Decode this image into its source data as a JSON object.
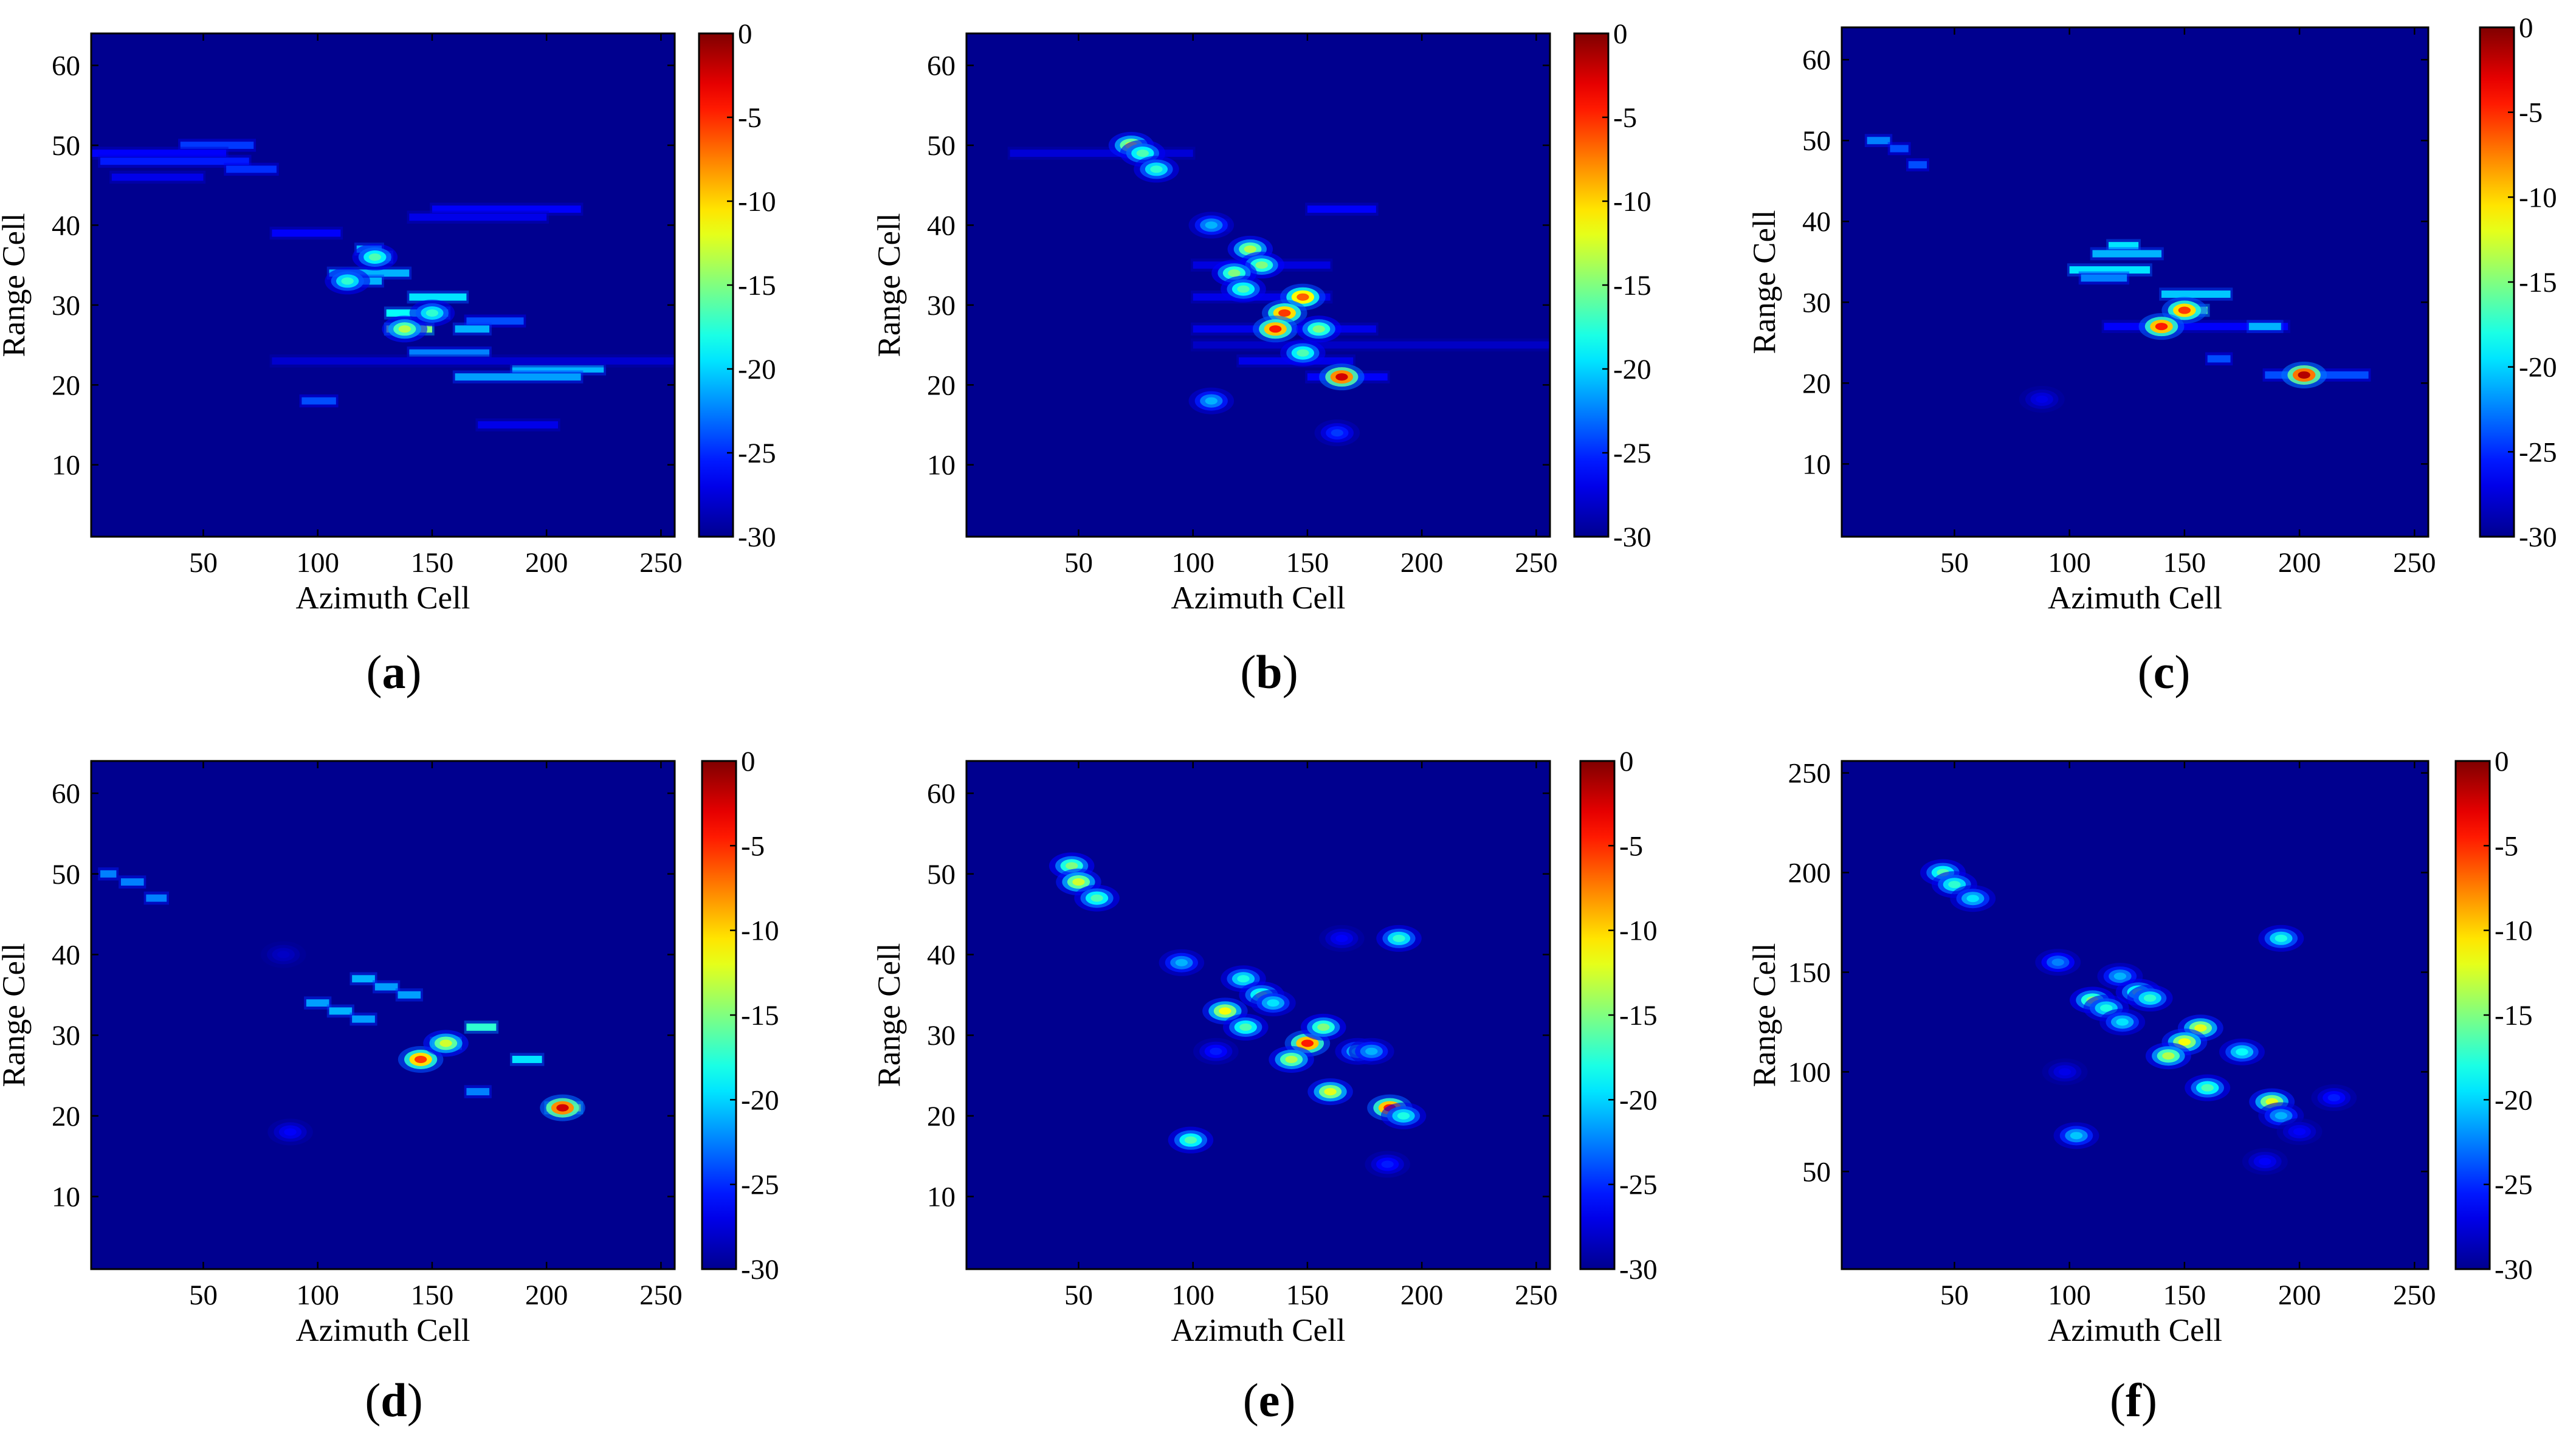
{
  "colormap": {
    "name": "jet",
    "background": "#00008f",
    "stops": [
      "#00008f",
      "#0000ff",
      "#00ffff",
      "#ffff00",
      "#ff0000",
      "#800000"
    ]
  },
  "chart_data": [
    {
      "id": "a",
      "type": "heatmap",
      "caption": "a",
      "xlabel": "Azimuth Cell",
      "ylabel": "Range Cell",
      "xlim": [
        1,
        256
      ],
      "ylim": [
        1,
        64
      ],
      "xticks": [
        50,
        100,
        150,
        200,
        250
      ],
      "yticks": [
        10,
        20,
        30,
        40,
        50,
        60
      ],
      "colorbar": {
        "min": -30,
        "max": 0,
        "ticks": [
          0,
          -5,
          -10,
          -15,
          -20,
          -25,
          -30
        ]
      },
      "streaks": [
        {
          "y": 50,
          "x1": 40,
          "x2": 72,
          "level": 0.18
        },
        {
          "y": 49,
          "x1": 1,
          "x2": 60,
          "level": 0.12
        },
        {
          "y": 48,
          "x1": 5,
          "x2": 70,
          "level": 0.15
        },
        {
          "y": 47,
          "x1": 60,
          "x2": 82,
          "level": 0.17
        },
        {
          "y": 46,
          "x1": 10,
          "x2": 50,
          "level": 0.1
        },
        {
          "y": 42,
          "x1": 150,
          "x2": 215,
          "level": 0.12
        },
        {
          "y": 41,
          "x1": 140,
          "x2": 200,
          "level": 0.1
        },
        {
          "y": 39,
          "x1": 80,
          "x2": 110,
          "level": 0.12
        },
        {
          "y": 37,
          "x1": 117,
          "x2": 128,
          "level": 0.3
        },
        {
          "y": 36,
          "x1": 120,
          "x2": 132,
          "level": 0.35
        },
        {
          "y": 34,
          "x1": 105,
          "x2": 140,
          "level": 0.3
        },
        {
          "y": 33,
          "x1": 110,
          "x2": 128,
          "level": 0.3
        },
        {
          "y": 31,
          "x1": 140,
          "x2": 165,
          "level": 0.35
        },
        {
          "y": 29,
          "x1": 130,
          "x2": 157,
          "level": 0.38
        },
        {
          "y": 28,
          "x1": 165,
          "x2": 190,
          "level": 0.2
        },
        {
          "y": 27,
          "x1": 130,
          "x2": 150,
          "level": 0.5
        },
        {
          "y": 27,
          "x1": 160,
          "x2": 175,
          "level": 0.3
        },
        {
          "y": 24,
          "x1": 140,
          "x2": 175,
          "level": 0.25
        },
        {
          "y": 22,
          "x1": 185,
          "x2": 225,
          "level": 0.3
        },
        {
          "y": 21,
          "x1": 160,
          "x2": 215,
          "level": 0.28
        },
        {
          "y": 18,
          "x1": 93,
          "x2": 108,
          "level": 0.2
        },
        {
          "y": 15,
          "x1": 170,
          "x2": 205,
          "level": 0.1
        },
        {
          "y": 23,
          "x1": 80,
          "x2": 256,
          "level": 0.07
        }
      ],
      "peaks": [
        {
          "x": 125,
          "y": 36,
          "level": 0.45
        },
        {
          "x": 113,
          "y": 33,
          "level": 0.42
        },
        {
          "x": 138,
          "y": 27,
          "level": 0.55
        },
        {
          "x": 150,
          "y": 29,
          "level": 0.42
        }
      ]
    },
    {
      "id": "b",
      "type": "heatmap",
      "caption": "b",
      "xlabel": "Azimuth Cell",
      "ylabel": "Range Cell",
      "xlim": [
        1,
        256
      ],
      "ylim": [
        1,
        64
      ],
      "xticks": [
        50,
        100,
        150,
        200,
        250
      ],
      "yticks": [
        10,
        20,
        30,
        40,
        50,
        60
      ],
      "colorbar": {
        "min": -30,
        "max": 0,
        "ticks": [
          0,
          -5,
          -10,
          -15,
          -20,
          -25,
          -30
        ]
      },
      "streaks": [
        {
          "y": 49,
          "x1": 20,
          "x2": 100,
          "level": 0.08
        },
        {
          "y": 42,
          "x1": 150,
          "x2": 180,
          "level": 0.12
        },
        {
          "y": 40,
          "x1": 105,
          "x2": 115,
          "level": 0.15
        },
        {
          "y": 35,
          "x1": 100,
          "x2": 160,
          "level": 0.09
        },
        {
          "y": 31,
          "x1": 100,
          "x2": 160,
          "level": 0.1
        },
        {
          "y": 27,
          "x1": 100,
          "x2": 180,
          "level": 0.1
        },
        {
          "y": 23,
          "x1": 120,
          "x2": 170,
          "level": 0.1
        },
        {
          "y": 21,
          "x1": 150,
          "x2": 185,
          "level": 0.12
        },
        {
          "y": 25,
          "x1": 100,
          "x2": 256,
          "level": 0.06
        }
      ],
      "peaks": [
        {
          "x": 73,
          "y": 50,
          "level": 0.58
        },
        {
          "x": 78,
          "y": 49,
          "level": 0.45
        },
        {
          "x": 84,
          "y": 47,
          "level": 0.42
        },
        {
          "x": 108,
          "y": 40,
          "level": 0.3
        },
        {
          "x": 125,
          "y": 37,
          "level": 0.55
        },
        {
          "x": 130,
          "y": 35,
          "level": 0.5
        },
        {
          "x": 118,
          "y": 34,
          "level": 0.5
        },
        {
          "x": 122,
          "y": 32,
          "level": 0.45
        },
        {
          "x": 148,
          "y": 31,
          "level": 0.78
        },
        {
          "x": 140,
          "y": 29,
          "level": 0.82
        },
        {
          "x": 136,
          "y": 27,
          "level": 0.85
        },
        {
          "x": 155,
          "y": 27,
          "level": 0.5
        },
        {
          "x": 148,
          "y": 24,
          "level": 0.45
        },
        {
          "x": 165,
          "y": 21,
          "level": 0.92
        },
        {
          "x": 108,
          "y": 18,
          "level": 0.3
        },
        {
          "x": 163,
          "y": 14,
          "level": 0.18
        }
      ]
    },
    {
      "id": "c",
      "type": "heatmap",
      "caption": "c",
      "xlabel": "Azimuth Cell",
      "ylabel": "Range Cell",
      "xlim": [
        1,
        256
      ],
      "ylim": [
        1,
        64
      ],
      "xticks": [
        50,
        100,
        150,
        200,
        250
      ],
      "yticks": [
        10,
        20,
        30,
        40,
        50,
        60
      ],
      "colorbar": {
        "min": -30,
        "max": 0,
        "ticks": [
          0,
          -5,
          -10,
          -15,
          -20,
          -25,
          -30
        ]
      },
      "streaks": [
        {
          "y": 50,
          "x1": 12,
          "x2": 22,
          "level": 0.25
        },
        {
          "y": 49,
          "x1": 22,
          "x2": 30,
          "level": 0.2
        },
        {
          "y": 47,
          "x1": 30,
          "x2": 38,
          "level": 0.2
        },
        {
          "y": 37,
          "x1": 117,
          "x2": 130,
          "level": 0.35
        },
        {
          "y": 36,
          "x1": 110,
          "x2": 140,
          "level": 0.3
        },
        {
          "y": 34,
          "x1": 100,
          "x2": 135,
          "level": 0.35
        },
        {
          "y": 33,
          "x1": 105,
          "x2": 125,
          "level": 0.25
        },
        {
          "y": 31,
          "x1": 140,
          "x2": 170,
          "level": 0.32
        },
        {
          "y": 29,
          "x1": 145,
          "x2": 160,
          "level": 0.45
        },
        {
          "y": 27,
          "x1": 115,
          "x2": 195,
          "level": 0.12
        },
        {
          "y": 27,
          "x1": 178,
          "x2": 192,
          "level": 0.3
        },
        {
          "y": 23,
          "x1": 160,
          "x2": 170,
          "level": 0.2
        },
        {
          "y": 21,
          "x1": 185,
          "x2": 230,
          "level": 0.2
        }
      ],
      "peaks": [
        {
          "x": 150,
          "y": 29,
          "level": 0.82
        },
        {
          "x": 140,
          "y": 27,
          "level": 0.85
        },
        {
          "x": 202,
          "y": 21,
          "level": 0.95
        },
        {
          "x": 88,
          "y": 18,
          "level": 0.1
        }
      ]
    },
    {
      "id": "d",
      "type": "heatmap",
      "caption": "d",
      "xlabel": "Azimuth Cell",
      "ylabel": "Range Cell",
      "xlim": [
        1,
        256
      ],
      "ylim": [
        1,
        64
      ],
      "xticks": [
        50,
        100,
        150,
        200,
        250
      ],
      "yticks": [
        10,
        20,
        30,
        40,
        50,
        60
      ],
      "colorbar": {
        "min": -30,
        "max": 0,
        "ticks": [
          0,
          -5,
          -10,
          -15,
          -20,
          -25,
          -30
        ]
      },
      "streaks": [
        {
          "y": 50,
          "x1": 5,
          "x2": 12,
          "level": 0.25
        },
        {
          "y": 49,
          "x1": 14,
          "x2": 24,
          "level": 0.25
        },
        {
          "y": 47,
          "x1": 25,
          "x2": 34,
          "level": 0.25
        },
        {
          "y": 37,
          "x1": 115,
          "x2": 125,
          "level": 0.3
        },
        {
          "y": 36,
          "x1": 125,
          "x2": 135,
          "level": 0.28
        },
        {
          "y": 35,
          "x1": 135,
          "x2": 145,
          "level": 0.28
        },
        {
          "y": 34,
          "x1": 95,
          "x2": 105,
          "level": 0.28
        },
        {
          "y": 33,
          "x1": 105,
          "x2": 115,
          "level": 0.3
        },
        {
          "y": 32,
          "x1": 115,
          "x2": 125,
          "level": 0.28
        },
        {
          "y": 31,
          "x1": 165,
          "x2": 178,
          "level": 0.42
        },
        {
          "y": 29,
          "x1": 150,
          "x2": 162,
          "level": 0.5
        },
        {
          "y": 27,
          "x1": 185,
          "x2": 198,
          "level": 0.35
        },
        {
          "y": 23,
          "x1": 165,
          "x2": 175,
          "level": 0.25
        },
        {
          "y": 21,
          "x1": 200,
          "x2": 215,
          "level": 0.55
        }
      ],
      "peaks": [
        {
          "x": 145,
          "y": 27,
          "level": 0.82
        },
        {
          "x": 156,
          "y": 29,
          "level": 0.58
        },
        {
          "x": 207,
          "y": 21,
          "level": 0.92
        },
        {
          "x": 85,
          "y": 40,
          "level": 0.06
        },
        {
          "x": 88,
          "y": 18,
          "level": 0.12
        }
      ]
    },
    {
      "id": "e",
      "type": "heatmap",
      "caption": "e",
      "xlabel": "Azimuth Cell",
      "ylabel": "Range Cell",
      "xlim": [
        1,
        256
      ],
      "ylim": [
        1,
        64
      ],
      "xticks": [
        50,
        100,
        150,
        200,
        250
      ],
      "yticks": [
        10,
        20,
        30,
        40,
        50,
        60
      ],
      "colorbar": {
        "min": -30,
        "max": 0,
        "ticks": [
          0,
          -5,
          -10,
          -15,
          -20,
          -25,
          -30
        ]
      },
      "streaks": [],
      "peaks": [
        {
          "x": 47,
          "y": 51,
          "level": 0.5
        },
        {
          "x": 50,
          "y": 49,
          "level": 0.58
        },
        {
          "x": 58,
          "y": 47,
          "level": 0.45
        },
        {
          "x": 95,
          "y": 39,
          "level": 0.3
        },
        {
          "x": 122,
          "y": 37,
          "level": 0.4
        },
        {
          "x": 130,
          "y": 35,
          "level": 0.45
        },
        {
          "x": 135,
          "y": 34,
          "level": 0.35
        },
        {
          "x": 114,
          "y": 33,
          "level": 0.62
        },
        {
          "x": 123,
          "y": 31,
          "level": 0.45
        },
        {
          "x": 150,
          "y": 29,
          "level": 0.85
        },
        {
          "x": 157,
          "y": 31,
          "level": 0.5
        },
        {
          "x": 143,
          "y": 27,
          "level": 0.55
        },
        {
          "x": 172,
          "y": 28,
          "level": 0.35
        },
        {
          "x": 178,
          "y": 28,
          "level": 0.3
        },
        {
          "x": 160,
          "y": 23,
          "level": 0.6
        },
        {
          "x": 186,
          "y": 21,
          "level": 0.85
        },
        {
          "x": 192,
          "y": 20,
          "level": 0.4
        },
        {
          "x": 190,
          "y": 42,
          "level": 0.42
        },
        {
          "x": 99,
          "y": 17,
          "level": 0.45
        },
        {
          "x": 185,
          "y": 14,
          "level": 0.15
        },
        {
          "x": 165,
          "y": 42,
          "level": 0.12
        },
        {
          "x": 110,
          "y": 28,
          "level": 0.15
        }
      ]
    },
    {
      "id": "f",
      "type": "heatmap",
      "caption": "f",
      "xlabel": "Azimuth Cell",
      "ylabel": "Range Cell",
      "xlim": [
        1,
        256
      ],
      "ylim": [
        1,
        256
      ],
      "xticks": [
        50,
        100,
        150,
        200,
        250
      ],
      "yticks": [
        50,
        100,
        150,
        200,
        250
      ],
      "colorbar": {
        "min": -30,
        "max": 0,
        "ticks": [
          0,
          -5,
          -10,
          -15,
          -20,
          -25,
          -30
        ]
      },
      "streaks": [],
      "peaks": [
        {
          "x": 45,
          "y": 200,
          "level": 0.45
        },
        {
          "x": 50,
          "y": 194,
          "level": 0.42
        },
        {
          "x": 58,
          "y": 187,
          "level": 0.35
        },
        {
          "x": 95,
          "y": 155,
          "level": 0.25
        },
        {
          "x": 122,
          "y": 148,
          "level": 0.3
        },
        {
          "x": 110,
          "y": 136,
          "level": 0.5
        },
        {
          "x": 116,
          "y": 132,
          "level": 0.4
        },
        {
          "x": 130,
          "y": 140,
          "level": 0.45
        },
        {
          "x": 135,
          "y": 137,
          "level": 0.42
        },
        {
          "x": 123,
          "y": 125,
          "level": 0.35
        },
        {
          "x": 157,
          "y": 122,
          "level": 0.6
        },
        {
          "x": 150,
          "y": 115,
          "level": 0.62
        },
        {
          "x": 143,
          "y": 108,
          "level": 0.55
        },
        {
          "x": 175,
          "y": 110,
          "level": 0.38
        },
        {
          "x": 160,
          "y": 92,
          "level": 0.45
        },
        {
          "x": 188,
          "y": 85,
          "level": 0.6
        },
        {
          "x": 192,
          "y": 78,
          "level": 0.3
        },
        {
          "x": 192,
          "y": 167,
          "level": 0.4
        },
        {
          "x": 103,
          "y": 68,
          "level": 0.32
        },
        {
          "x": 215,
          "y": 87,
          "level": 0.15
        },
        {
          "x": 185,
          "y": 55,
          "level": 0.12
        },
        {
          "x": 98,
          "y": 100,
          "level": 0.1
        },
        {
          "x": 200,
          "y": 70,
          "level": 0.12
        }
      ]
    }
  ]
}
